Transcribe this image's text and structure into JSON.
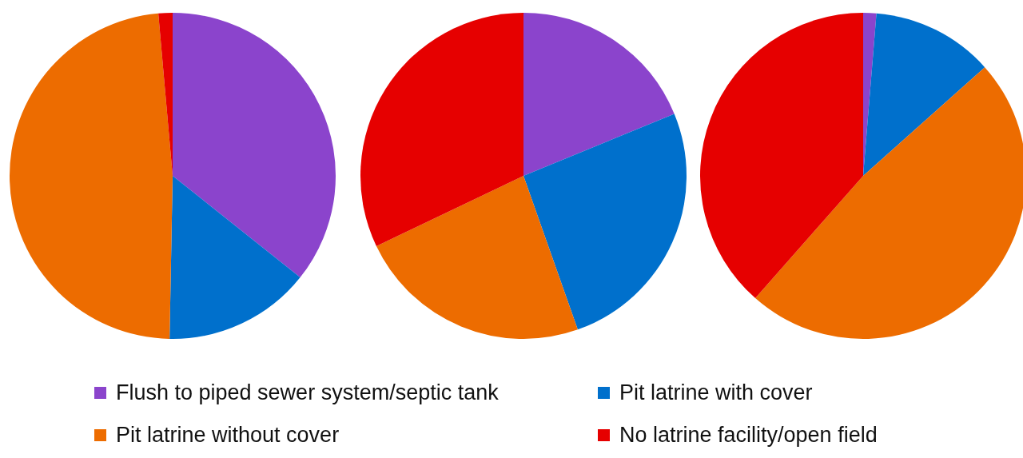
{
  "chart_data": [
    {
      "type": "pie",
      "categories": [
        "Flush to piped sewer system/septic tank",
        "Pit latrine with cover",
        "Pit latrine without cover",
        "No latrine facility/open field"
      ],
      "values": [
        35.7,
        14.6,
        48.3,
        1.4
      ],
      "colors": [
        "#8b44cc",
        "#0070cc",
        "#ed6c00",
        "#e60000"
      ],
      "legend": "bottom"
    },
    {
      "type": "pie",
      "categories": [
        null,
        null,
        null,
        null
      ],
      "values": [
        18.8,
        25.8,
        23.3,
        32.1
      ],
      "colors": [
        "#8b44cc",
        "#0070cc",
        "#ed6c00",
        "#e60000"
      ]
    },
    {
      "type": "pie",
      "categories": [
        null,
        null,
        null,
        null
      ],
      "values": [
        1.3,
        12.1,
        48.1,
        38.5
      ],
      "colors": [
        "#8b44cc",
        "#0070cc",
        "#ed6c00",
        "#e60000"
      ]
    }
  ]
}
